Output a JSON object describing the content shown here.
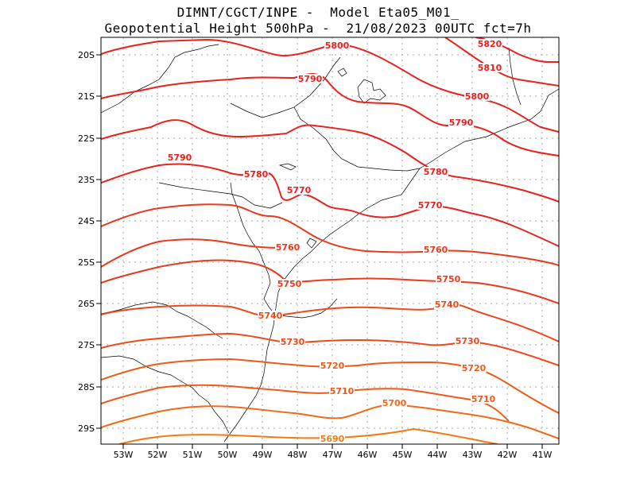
{
  "title": {
    "line1": "DIMNT/CGCT/INPE -  Model Eta05_M01_",
    "line2": "Geopotential Height 500hPa -  21/08/2023 00UTC fct=7h"
  },
  "axes": {
    "lat_labels": [
      "20S",
      "21S",
      "22S",
      "23S",
      "24S",
      "25S",
      "26S",
      "27S",
      "28S",
      "29S"
    ],
    "lon_labels": [
      "53W",
      "52W",
      "51W",
      "50W",
      "49W",
      "48W",
      "47W",
      "46W",
      "45W",
      "44W",
      "43W",
      "42W",
      "41W"
    ]
  },
  "contours": [
    {
      "value": "5820",
      "color": "#e8221e",
      "labels": [
        "5820"
      ]
    },
    {
      "value": "5810",
      "color": "#e8221e",
      "labels": [
        "5810"
      ]
    },
    {
      "value": "5800",
      "color": "#e8221e",
      "labels": [
        "5800",
        "5800"
      ]
    },
    {
      "value": "5790",
      "color": "#e8221e",
      "labels": [
        "5790",
        "5790",
        "5790"
      ]
    },
    {
      "value": "5780",
      "color": "#e8221e",
      "labels": [
        "5780",
        "5780"
      ]
    },
    {
      "value": "5770",
      "color": "#e8221e",
      "labels": [
        "5770",
        "5770"
      ]
    },
    {
      "value": "5760",
      "color": "#ea3a1c",
      "labels": [
        "5760",
        "5760"
      ]
    },
    {
      "value": "5750",
      "color": "#ea3a1c",
      "labels": [
        "5750",
        "5750"
      ]
    },
    {
      "value": "5740",
      "color": "#ec4a1a",
      "labels": [
        "5740",
        "5740"
      ]
    },
    {
      "value": "5730",
      "color": "#ec4a1a",
      "labels": [
        "5730",
        "5730"
      ]
    },
    {
      "value": "5720",
      "color": "#f05a18",
      "labels": [
        "5720",
        "5720"
      ]
    },
    {
      "value": "5710",
      "color": "#f05a18",
      "labels": [
        "5710",
        "5710"
      ]
    },
    {
      "value": "5700",
      "color": "#f26a16",
      "labels": [
        "5700"
      ]
    },
    {
      "value": "5690",
      "color": "#f47a14",
      "labels": [
        "5690"
      ]
    }
  ]
}
